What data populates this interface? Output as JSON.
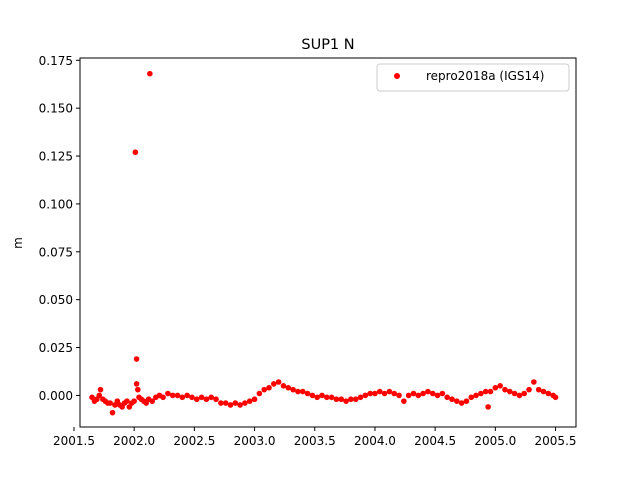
{
  "chart_data": {
    "type": "scatter",
    "title": "SUP1 N",
    "xlabel": "",
    "ylabel": "m",
    "xlim": [
      2001.55,
      2005.67
    ],
    "ylim": [
      -0.0165,
      0.1762
    ],
    "xticks": [
      2001.5,
      2002.0,
      2002.5,
      2003.0,
      2003.5,
      2004.0,
      2004.5,
      2005.0,
      2005.5
    ],
    "xtick_labels": [
      "2001.5",
      "2002.0",
      "2002.5",
      "2003.0",
      "2003.5",
      "2004.0",
      "2004.5",
      "2005.0",
      "2005.5"
    ],
    "yticks": [
      0.0,
      0.025,
      0.05,
      0.075,
      0.1,
      0.125,
      0.15,
      0.175
    ],
    "ytick_labels": [
      "0.000",
      "0.025",
      "0.050",
      "0.075",
      "0.100",
      "0.125",
      "0.150",
      "0.175"
    ],
    "grid": false,
    "legend_position": "upper right",
    "series": [
      {
        "name": "repro2018a (IGS14)",
        "color": "#ff0000",
        "marker": "circle",
        "points": [
          [
            2001.65,
            -0.001
          ],
          [
            2001.67,
            -0.003
          ],
          [
            2001.69,
            -0.002
          ],
          [
            2001.71,
            0.0
          ],
          [
            2001.72,
            0.003
          ],
          [
            2001.74,
            -0.002
          ],
          [
            2001.76,
            -0.003
          ],
          [
            2001.78,
            -0.004
          ],
          [
            2001.8,
            -0.004
          ],
          [
            2001.82,
            -0.009
          ],
          [
            2001.84,
            -0.005
          ],
          [
            2001.86,
            -0.003
          ],
          [
            2001.88,
            -0.005
          ],
          [
            2001.9,
            -0.006
          ],
          [
            2001.92,
            -0.004
          ],
          [
            2001.94,
            -0.003
          ],
          [
            2001.96,
            -0.006
          ],
          [
            2001.98,
            -0.004
          ],
          [
            2002.0,
            -0.003
          ],
          [
            2002.01,
            0.127
          ],
          [
            2002.02,
            0.019
          ],
          [
            2002.02,
            0.006
          ],
          [
            2002.03,
            0.003
          ],
          [
            2002.04,
            -0.001
          ],
          [
            2002.06,
            -0.002
          ],
          [
            2002.08,
            -0.003
          ],
          [
            2002.1,
            -0.004
          ],
          [
            2002.12,
            -0.002
          ],
          [
            2002.13,
            0.168
          ],
          [
            2002.15,
            -0.003
          ],
          [
            2002.18,
            -0.001
          ],
          [
            2002.21,
            0.0
          ],
          [
            2002.24,
            -0.001
          ],
          [
            2002.28,
            0.001
          ],
          [
            2002.32,
            0.0
          ],
          [
            2002.36,
            0.0
          ],
          [
            2002.4,
            -0.001
          ],
          [
            2002.44,
            0.0
          ],
          [
            2002.48,
            -0.001
          ],
          [
            2002.52,
            -0.002
          ],
          [
            2002.56,
            -0.001
          ],
          [
            2002.6,
            -0.002
          ],
          [
            2002.64,
            -0.001
          ],
          [
            2002.68,
            -0.002
          ],
          [
            2002.72,
            -0.004
          ],
          [
            2002.76,
            -0.004
          ],
          [
            2002.8,
            -0.005
          ],
          [
            2002.84,
            -0.004
          ],
          [
            2002.88,
            -0.005
          ],
          [
            2002.92,
            -0.004
          ],
          [
            2002.96,
            -0.003
          ],
          [
            2003.0,
            -0.002
          ],
          [
            2003.04,
            0.001
          ],
          [
            2003.08,
            0.003
          ],
          [
            2003.12,
            0.004
          ],
          [
            2003.16,
            0.006
          ],
          [
            2003.2,
            0.007
          ],
          [
            2003.24,
            0.005
          ],
          [
            2003.28,
            0.004
          ],
          [
            2003.32,
            0.003
          ],
          [
            2003.36,
            0.002
          ],
          [
            2003.4,
            0.002
          ],
          [
            2003.44,
            0.001
          ],
          [
            2003.48,
            0.0
          ],
          [
            2003.52,
            -0.001
          ],
          [
            2003.56,
            0.0
          ],
          [
            2003.6,
            -0.001
          ],
          [
            2003.64,
            -0.001
          ],
          [
            2003.68,
            -0.002
          ],
          [
            2003.72,
            -0.002
          ],
          [
            2003.76,
            -0.003
          ],
          [
            2003.8,
            -0.002
          ],
          [
            2003.84,
            -0.002
          ],
          [
            2003.88,
            -0.001
          ],
          [
            2003.92,
            0.0
          ],
          [
            2003.96,
            0.001
          ],
          [
            2004.0,
            0.001
          ],
          [
            2004.04,
            0.002
          ],
          [
            2004.08,
            0.001
          ],
          [
            2004.12,
            0.002
          ],
          [
            2004.16,
            0.001
          ],
          [
            2004.2,
            0.0
          ],
          [
            2004.24,
            -0.003
          ],
          [
            2004.28,
            0.0
          ],
          [
            2004.32,
            0.001
          ],
          [
            2004.36,
            0.0
          ],
          [
            2004.4,
            0.001
          ],
          [
            2004.44,
            0.002
          ],
          [
            2004.48,
            0.001
          ],
          [
            2004.52,
            0.0
          ],
          [
            2004.56,
            0.001
          ],
          [
            2004.6,
            -0.001
          ],
          [
            2004.64,
            -0.002
          ],
          [
            2004.68,
            -0.003
          ],
          [
            2004.72,
            -0.004
          ],
          [
            2004.76,
            -0.003
          ],
          [
            2004.8,
            -0.001
          ],
          [
            2004.84,
            0.0
          ],
          [
            2004.88,
            0.001
          ],
          [
            2004.92,
            0.002
          ],
          [
            2004.94,
            -0.006
          ],
          [
            2004.96,
            0.002
          ],
          [
            2005.0,
            0.004
          ],
          [
            2005.04,
            0.005
          ],
          [
            2005.08,
            0.003
          ],
          [
            2005.12,
            0.002
          ],
          [
            2005.16,
            0.001
          ],
          [
            2005.2,
            0.0
          ],
          [
            2005.24,
            0.001
          ],
          [
            2005.28,
            0.003
          ],
          [
            2005.32,
            0.007
          ],
          [
            2005.36,
            0.003
          ],
          [
            2005.4,
            0.002
          ],
          [
            2005.44,
            0.001
          ],
          [
            2005.48,
            0.0
          ],
          [
            2005.5,
            -0.001
          ]
        ]
      }
    ]
  }
}
